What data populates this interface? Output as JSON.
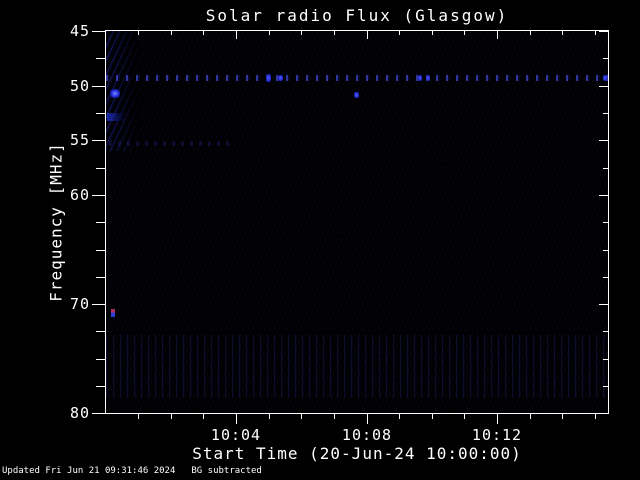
{
  "colors": {
    "background": "#000000",
    "axis": "#ffffff",
    "text": "#ffffff",
    "signal_blue": "#2a34e0",
    "signal_bright_blue": "#6a76ff",
    "speck_red": "#b03060"
  },
  "footer": {
    "updated": "Updated Fri Jun 21 09:31:46 2024",
    "bg_note": "BG subtracted"
  },
  "chart_data": {
    "type": "heatmap",
    "title": "Solar radio Flux (Glasgow)",
    "xlabel": "Start Time (20-Jun-24 10:00:00)",
    "ylabel": "Frequency [MHz]",
    "x_start": "10:00:00",
    "x_end": "10:15:30",
    "date": "20-Jun-24",
    "ylim": [
      45,
      80
    ],
    "y_orientation": "inverted: 45 MHz at top, 80 MHz at bottom",
    "grid": "off",
    "colormap": "faint dark-blue signal on black, background subtracted",
    "xaxis": {
      "major_ticks": [
        {
          "label": "10:04",
          "minutes": 4
        },
        {
          "label": "10:08",
          "minutes": 8
        },
        {
          "label": "10:12",
          "minutes": 12
        }
      ],
      "minor_tick_minutes": [
        1,
        2,
        3,
        5,
        6,
        7,
        9,
        10,
        11,
        13,
        14,
        15
      ]
    },
    "yaxis": {
      "major_ticks": [
        {
          "label": "45",
          "mhz": 45
        },
        {
          "label": "50",
          "mhz": 50
        },
        {
          "label": "55",
          "mhz": 55
        },
        {
          "label": "60",
          "mhz": 60
        },
        {
          "label": "70",
          "mhz": 70
        },
        {
          "label": "80",
          "mhz": 80
        }
      ],
      "minor_tick_mhz": [
        47.5,
        52.5,
        57.5,
        62.5,
        65,
        67.5,
        72.5,
        75,
        77.5
      ]
    },
    "features": [
      {
        "name": "rfi-diagonal-stripes",
        "css": "rfi-stripes",
        "t_start_min": 0.0,
        "t_end_min": 1.1,
        "f_min_mhz": 45.0,
        "f_max_mhz": 56.0,
        "description": "diagonal interference striping at start of interval, 45-56 MHz"
      },
      {
        "name": "bright-burst-blob",
        "css": "blob",
        "t_start_min": 0.15,
        "t_end_min": 0.45,
        "f_min_mhz": 50.3,
        "f_max_mhz": 51.1,
        "description": "brightest blue point, ~50.7 MHz near 10:00:15"
      },
      {
        "name": "left-edge-streak",
        "css": "streak",
        "t_start_min": 0.05,
        "t_end_min": 0.65,
        "f_min_mhz": 52.5,
        "f_max_mhz": 53.2,
        "description": "short blue streak at left edge, ~52.8 MHz"
      },
      {
        "name": "narrowband-dotted-line",
        "css": "dotted-line",
        "t_start_min": 0.0,
        "t_end_min": 15.4,
        "f_min_mhz": 49.0,
        "f_max_mhz": 49.55,
        "description": "persistent dotted narrowband channel ~49.4 MHz across whole interval"
      },
      {
        "name": "emission-dot",
        "css": "bright-dot",
        "t_start_min": 4.92,
        "t_end_min": 5.08,
        "f_min_mhz": 48.9,
        "f_max_mhz": 49.7,
        "description": "brighter dot on 49.4 MHz channel ~10:05:00"
      },
      {
        "name": "emission-dot",
        "css": "bright-dot",
        "t_start_min": 5.3,
        "t_end_min": 5.45,
        "f_min_mhz": 49.0,
        "f_max_mhz": 49.6,
        "description": "brighter dot on 49.4 MHz channel ~10:05:22"
      },
      {
        "name": "emission-dot",
        "css": "bright-dot",
        "t_start_min": 7.6,
        "t_end_min": 7.76,
        "f_min_mhz": 50.6,
        "f_max_mhz": 51.1,
        "description": "isolated bright dot ~50.9 MHz near 10:07:40"
      },
      {
        "name": "emission-dot",
        "css": "bright-dot",
        "t_start_min": 9.58,
        "t_end_min": 9.7,
        "f_min_mhz": 49.05,
        "f_max_mhz": 49.6,
        "description": "brighter dot on channel ~10:09:38"
      },
      {
        "name": "emission-dot",
        "css": "bright-dot",
        "t_start_min": 9.83,
        "t_end_min": 9.95,
        "f_min_mhz": 49.05,
        "f_max_mhz": 49.6,
        "description": "brighter dot on channel ~10:09:53"
      },
      {
        "name": "emission-dot",
        "css": "bright-dot",
        "t_start_min": 15.25,
        "t_end_min": 15.38,
        "f_min_mhz": 49.0,
        "f_max_mhz": 49.55,
        "description": "brighter dot at right edge"
      },
      {
        "name": "red-blue-speck",
        "css": "speck",
        "t_start_min": 0.18,
        "t_end_min": 0.28,
        "f_min_mhz": 70.4,
        "f_max_mhz": 71.2,
        "description": "tiny red-over-blue pixel speck ~71 MHz near 10:00:15"
      },
      {
        "name": "broadband-stripe-band",
        "css": "vstripes",
        "t_start_min": 0.0,
        "t_end_min": 15.43,
        "f_min_mhz": 72.8,
        "f_max_mhz": 78.6,
        "description": "band of faint periodic vertical stripes 73-79 MHz across whole interval"
      },
      {
        "name": "faint-dash-row",
        "css": "dash-row",
        "t_start_min": 0.1,
        "t_end_min": 3.8,
        "f_min_mhz": 55.1,
        "f_max_mhz": 55.5,
        "description": "very faint dashed row ~55.3 MHz early in interval"
      }
    ]
  }
}
